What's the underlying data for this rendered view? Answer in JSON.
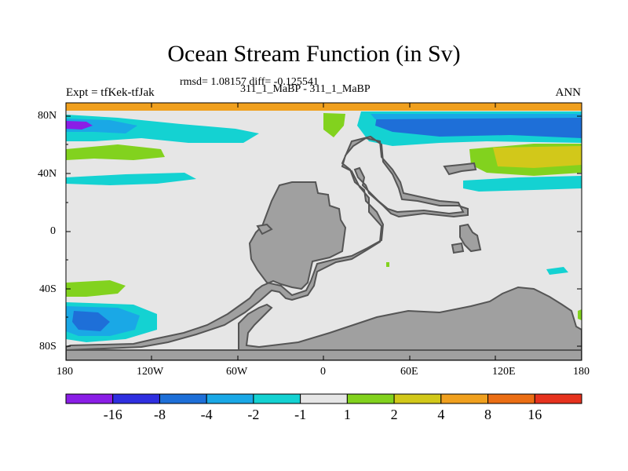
{
  "title": "Ocean Stream Function (in Sv)",
  "stats_line": "rmsd= 1.08157 diff= -0.125541",
  "subtitle": "311_1_MaBP - 311_1_MaBP",
  "left_label": "Expt = tfKek-tfJak",
  "right_label": "ANN",
  "lat_ticks": [
    "80N",
    "40N",
    "0",
    "40S",
    "80S"
  ],
  "lon_ticks": [
    "180",
    "120W",
    "60W",
    "0",
    "60E",
    "120E",
    "180"
  ],
  "colorbar": {
    "labels": [
      "-16",
      "-8",
      "-4",
      "-2",
      "-1",
      "1",
      "2",
      "4",
      "8",
      "16"
    ],
    "colors": [
      "#8a1ee6",
      "#2f2fe0",
      "#1e6fd8",
      "#1aa8e6",
      "#14d2d2",
      "#e6e6e6",
      "#82d21e",
      "#d2c81a",
      "#f0a01e",
      "#eb6e14",
      "#e6321e"
    ]
  },
  "colors": {
    "land": "#a0a0a0",
    "ocean_neutral": "#e6e6e6",
    "coast_outline": "#555555"
  }
}
